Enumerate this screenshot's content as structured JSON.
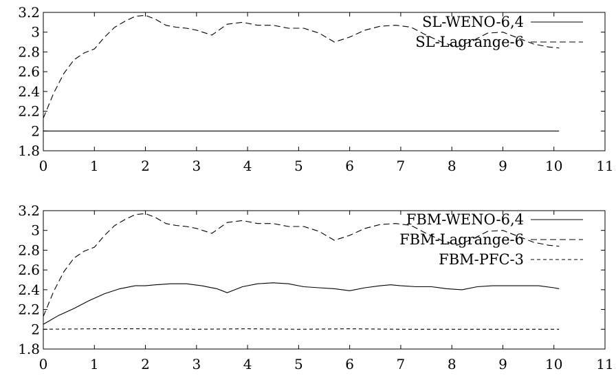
{
  "chart_data": [
    {
      "type": "line",
      "xlim": [
        0,
        11
      ],
      "ylim": [
        1.8,
        3.2
      ],
      "xticks": [
        "0",
        "1",
        "2",
        "3",
        "4",
        "5",
        "6",
        "7",
        "8",
        "9",
        "10",
        "11"
      ],
      "yticks": [
        "1.8",
        "2",
        "2.2",
        "2.4",
        "2.6",
        "2.8",
        "3",
        "3.2"
      ],
      "grid": false,
      "legend": "top-right",
      "series": [
        {
          "name": "SL-WENO-6,4",
          "style": "solid",
          "color": "#000000",
          "x": [
            0,
            10.1
          ],
          "y": [
            2.0,
            2.0
          ]
        },
        {
          "name": "SL-Lagrange-6",
          "style": "dashed",
          "color": "#000000",
          "x": [
            0,
            0.2,
            0.4,
            0.6,
            0.8,
            1.0,
            1.2,
            1.4,
            1.6,
            1.8,
            2.0,
            2.2,
            2.4,
            2.6,
            2.8,
            3.0,
            3.3,
            3.6,
            3.9,
            4.2,
            4.5,
            4.8,
            5.1,
            5.4,
            5.7,
            6.0,
            6.3,
            6.6,
            6.9,
            7.2,
            7.5,
            7.8,
            8.1,
            8.4,
            8.7,
            9.0,
            9.3,
            9.6,
            9.9,
            10.1
          ],
          "y": [
            2.13,
            2.38,
            2.58,
            2.72,
            2.79,
            2.83,
            2.95,
            3.05,
            3.11,
            3.16,
            3.17,
            3.13,
            3.07,
            3.05,
            3.04,
            3.02,
            2.97,
            3.08,
            3.1,
            3.07,
            3.07,
            3.04,
            3.04,
            2.99,
            2.9,
            2.95,
            3.02,
            3.06,
            3.07,
            3.05,
            2.97,
            2.9,
            2.85,
            2.91,
            2.99,
            3.0,
            2.94,
            2.88,
            2.85,
            2.84
          ]
        }
      ]
    },
    {
      "type": "line",
      "xlim": [
        0,
        11
      ],
      "ylim": [
        1.8,
        3.2
      ],
      "xticks": [
        "0",
        "1",
        "2",
        "3",
        "4",
        "5",
        "6",
        "7",
        "8",
        "9",
        "10",
        "11"
      ],
      "yticks": [
        "1.8",
        "2",
        "2.2",
        "2.4",
        "2.6",
        "2.8",
        "3",
        "3.2"
      ],
      "grid": false,
      "legend": "top-right",
      "series": [
        {
          "name": "FBM-WENO-6,4",
          "style": "solid",
          "color": "#000000",
          "x": [
            0,
            0.3,
            0.6,
            0.9,
            1.2,
            1.5,
            1.8,
            2.0,
            2.2,
            2.5,
            2.8,
            3.1,
            3.4,
            3.6,
            3.9,
            4.2,
            4.5,
            4.8,
            5.1,
            5.4,
            5.7,
            6.0,
            6.3,
            6.6,
            6.8,
            7.0,
            7.3,
            7.6,
            7.9,
            8.2,
            8.5,
            8.8,
            9.1,
            9.4,
            9.7,
            10.0,
            10.1
          ],
          "y": [
            2.05,
            2.14,
            2.21,
            2.29,
            2.36,
            2.41,
            2.44,
            2.44,
            2.45,
            2.46,
            2.46,
            2.44,
            2.41,
            2.37,
            2.43,
            2.46,
            2.47,
            2.46,
            2.43,
            2.42,
            2.41,
            2.39,
            2.42,
            2.44,
            2.45,
            2.44,
            2.43,
            2.43,
            2.41,
            2.4,
            2.43,
            2.44,
            2.44,
            2.44,
            2.44,
            2.42,
            2.41
          ]
        },
        {
          "name": "FBM-Lagrange-6",
          "style": "dashed",
          "color": "#000000",
          "x": [
            0,
            0.2,
            0.4,
            0.6,
            0.8,
            1.0,
            1.2,
            1.4,
            1.6,
            1.8,
            2.0,
            2.2,
            2.4,
            2.6,
            2.8,
            3.0,
            3.3,
            3.6,
            3.9,
            4.2,
            4.5,
            4.8,
            5.1,
            5.4,
            5.7,
            6.0,
            6.3,
            6.6,
            6.9,
            7.2,
            7.5,
            7.8,
            8.1,
            8.4,
            8.7,
            9.0,
            9.3,
            9.6,
            9.9,
            10.1
          ],
          "y": [
            2.13,
            2.38,
            2.58,
            2.72,
            2.79,
            2.83,
            2.95,
            3.05,
            3.11,
            3.16,
            3.17,
            3.13,
            3.07,
            3.05,
            3.04,
            3.02,
            2.97,
            3.08,
            3.1,
            3.07,
            3.07,
            3.04,
            3.04,
            2.99,
            2.9,
            2.95,
            3.02,
            3.06,
            3.07,
            3.05,
            2.97,
            2.9,
            2.85,
            2.91,
            2.99,
            3.0,
            2.94,
            2.88,
            2.85,
            2.84
          ]
        },
        {
          "name": "FBM-PFC-3",
          "style": "dotted",
          "color": "#000000",
          "x": [
            0,
            1,
            2,
            3,
            4,
            5,
            6,
            7,
            8,
            9,
            10,
            10.1
          ],
          "y": [
            2.0,
            2.005,
            2.005,
            2.0,
            2.005,
            2.0,
            2.005,
            2.0,
            2.0,
            2.0,
            2.0,
            2.0
          ]
        }
      ]
    }
  ]
}
